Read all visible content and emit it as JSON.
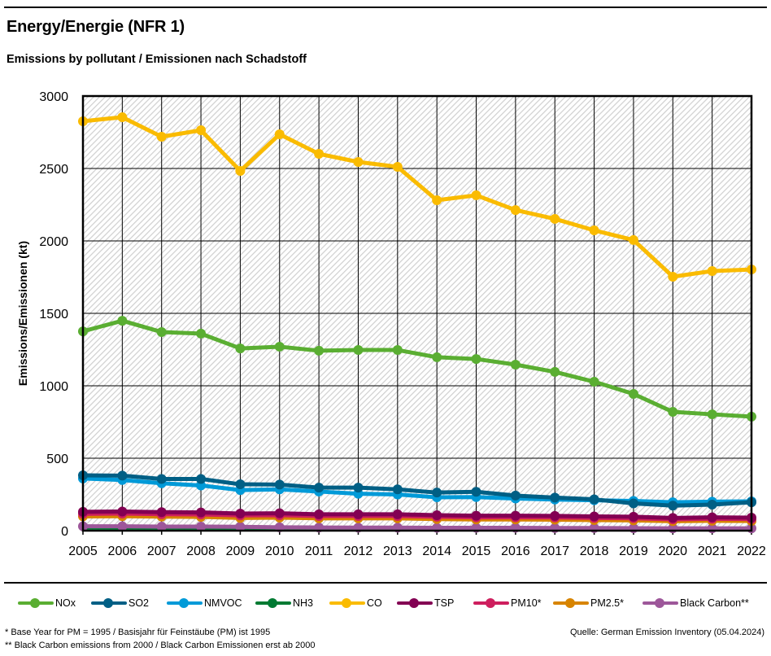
{
  "header": {
    "title": "Energy/Energie (NFR 1)",
    "subtitle": "Emissions by pollutant / Emissionen nach Schadstoff"
  },
  "footer": {
    "note1": "* Base Year for PM = 1995 / Basisjahr für Feinstäube (PM) ist 1995",
    "note2": "** Black Carbon emissions from 2000 / Black Carbon Emissionen erst ab 2000",
    "source": "Quelle: German Emission Inventory (05.04.2024)"
  },
  "chart_data": {
    "type": "line",
    "title": "Energy/Energie (NFR 1)",
    "subtitle": "Emissions by pollutant / Emissionen nach Schadstoff",
    "xlabel": "",
    "ylabel": "Emissions/Emissionen (kt)",
    "ylim": [
      0,
      3000
    ],
    "yticks": [
      0,
      500,
      1000,
      1500,
      2000,
      2500,
      3000
    ],
    "grid": true,
    "legend_position": "bottom",
    "x": [
      2005,
      2006,
      2007,
      2008,
      2009,
      2010,
      2011,
      2012,
      2013,
      2014,
      2015,
      2016,
      2017,
      2018,
      2019,
      2020,
      2021,
      2022
    ],
    "series": [
      {
        "name": "NOx",
        "color": "#5aae32",
        "values": [
          1376,
          1449,
          1371,
          1360,
          1258,
          1270,
          1242,
          1247,
          1247,
          1197,
          1185,
          1146,
          1096,
          1028,
          944,
          820,
          803,
          787
        ]
      },
      {
        "name": "SO2",
        "color": "#005f85",
        "values": [
          382,
          380,
          357,
          357,
          320,
          318,
          297,
          297,
          285,
          263,
          268,
          242,
          228,
          216,
          188,
          173,
          180,
          196
        ]
      },
      {
        "name": "NMVOC",
        "color": "#009ad8",
        "values": [
          360,
          350,
          327,
          312,
          280,
          285,
          270,
          255,
          250,
          230,
          232,
          222,
          215,
          210,
          205,
          196,
          200,
          202
        ]
      },
      {
        "name": "NH3",
        "color": "#007a32",
        "values": [
          12,
          12,
          12,
          12,
          12,
          12,
          12,
          12,
          12,
          12,
          12,
          12,
          12,
          12,
          12,
          12,
          12,
          12
        ]
      },
      {
        "name": "CO",
        "color": "#fabb00",
        "values": [
          2826,
          2854,
          2719,
          2764,
          2483,
          2736,
          2601,
          2545,
          2511,
          2281,
          2315,
          2213,
          2152,
          2073,
          2006,
          1753,
          1792,
          1803
        ]
      },
      {
        "name": "TSP",
        "color": "#830053",
        "values": [
          130,
          132,
          128,
          126,
          118,
          120,
          113,
          113,
          113,
          107,
          103,
          103,
          102,
          98,
          96,
          88,
          92,
          90
        ]
      },
      {
        "name": "PM10*",
        "color": "#ce1f5e",
        "values": [
          116,
          118,
          114,
          112,
          105,
          107,
          101,
          101,
          101,
          96,
          92,
          92,
          91,
          88,
          86,
          78,
          82,
          80
        ]
      },
      {
        "name": "PM2.5*",
        "color": "#d78400",
        "values": [
          98,
          100,
          97,
          95,
          88,
          90,
          85,
          85,
          85,
          80,
          77,
          77,
          76,
          73,
          71,
          65,
          68,
          67
        ]
      },
      {
        "name": "Black Carbon**",
        "color": "#9d579a",
        "values": [
          30,
          30,
          28,
          28,
          27,
          23,
          22,
          21,
          21,
          20,
          20,
          20,
          18,
          18,
          17,
          16,
          16,
          16
        ]
      }
    ]
  }
}
